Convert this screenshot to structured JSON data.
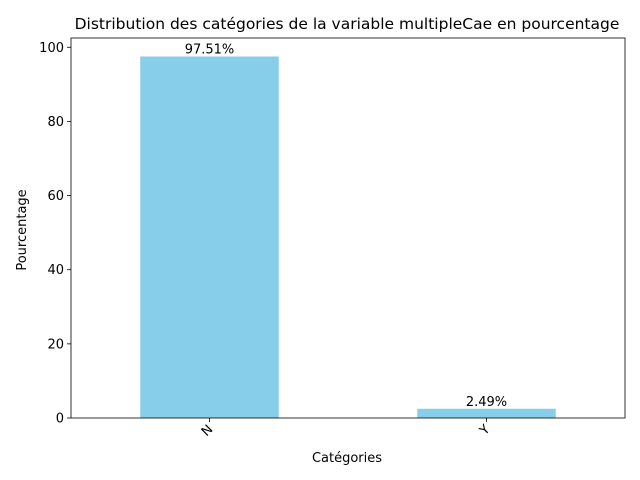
{
  "chart_data": {
    "type": "bar",
    "title": "Distribution des catégories de la variable multipleCae en pourcentage",
    "xlabel": "Catégories",
    "ylabel": "Pourcentage",
    "categories": [
      "N",
      "Y"
    ],
    "values": [
      97.51,
      2.49
    ],
    "data_labels": [
      "97.51%",
      "2.49%"
    ],
    "ylim": [
      0,
      102.5
    ],
    "yticks": [
      0,
      20,
      40,
      60,
      80,
      100
    ],
    "ytick_labels": [
      "0",
      "20",
      "40",
      "60",
      "80",
      "100"
    ],
    "x_tick_rotation": 45,
    "bar_color": "#87ceeb",
    "grid": false,
    "legend": "none"
  }
}
